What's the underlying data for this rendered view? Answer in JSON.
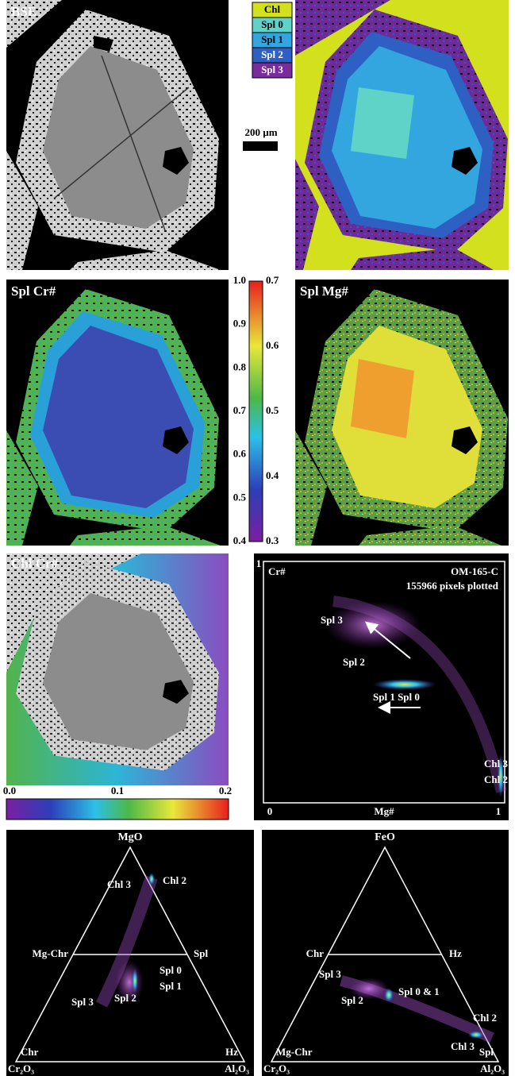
{
  "panels": {
    "bse": "BSE",
    "spl_cr": "Spl Cr#",
    "spl_mg": "Spl Mg#",
    "chl_cr": "Chl Cr#"
  },
  "legend": [
    {
      "name": "Chl",
      "color": "#d2e01e"
    },
    {
      "name": "Spl 0",
      "color": "#5fd3c8"
    },
    {
      "name": "Spl 1",
      "color": "#33a6e0"
    },
    {
      "name": "Spl 2",
      "color": "#2e5fc2"
    },
    {
      "name": "Spl 3",
      "color": "#7a2c9c"
    }
  ],
  "scale_bar": "200 µm",
  "spl_colorbar": {
    "left_ticks": [
      "1.0",
      "0.9",
      "0.8",
      "0.7",
      "0.6",
      "0.5",
      "0.4"
    ],
    "right_ticks": [
      "0.7",
      "0.6",
      "0.5",
      "0.4",
      "0.3"
    ]
  },
  "chl_colorbar": {
    "ticks": [
      "0.0",
      "0.1",
      "0.2"
    ]
  },
  "scatter": {
    "y_label": "Cr#",
    "x_label": "Mg#",
    "title": "OM-165-C",
    "subtitle": "155966 pixels plotted",
    "x_ticks": [
      "0",
      "1"
    ],
    "y_ticks": [
      "1"
    ],
    "annotations": [
      "Spl 3",
      "Spl 2",
      "Spl 1 Spl 0",
      "Chl 3",
      "Chl 2"
    ]
  },
  "ternary_left": {
    "apex": "MgO",
    "mid_left": "Mg-Chr",
    "mid_right": "Spl",
    "inner_left": "Chr",
    "inner_right": "Hz",
    "corner_left": "Cr₂O₃",
    "corner_right": "Al₂O₃",
    "annotations": [
      "Chl 3",
      "Chl 2",
      "Spl 0",
      "Spl 1",
      "Spl 3",
      "Spl 2"
    ]
  },
  "ternary_right": {
    "apex": "FeO",
    "mid_left": "Chr",
    "mid_right": "Hz",
    "inner_left": "Mg-Chr",
    "inner_right": "Spl",
    "corner_left": "Cr₂O₃",
    "corner_right": "Al₂O₃",
    "annotations": [
      "Spl 3",
      "Spl 0 & 1",
      "Spl 2",
      "Chl 2",
      "Chl 3"
    ]
  }
}
